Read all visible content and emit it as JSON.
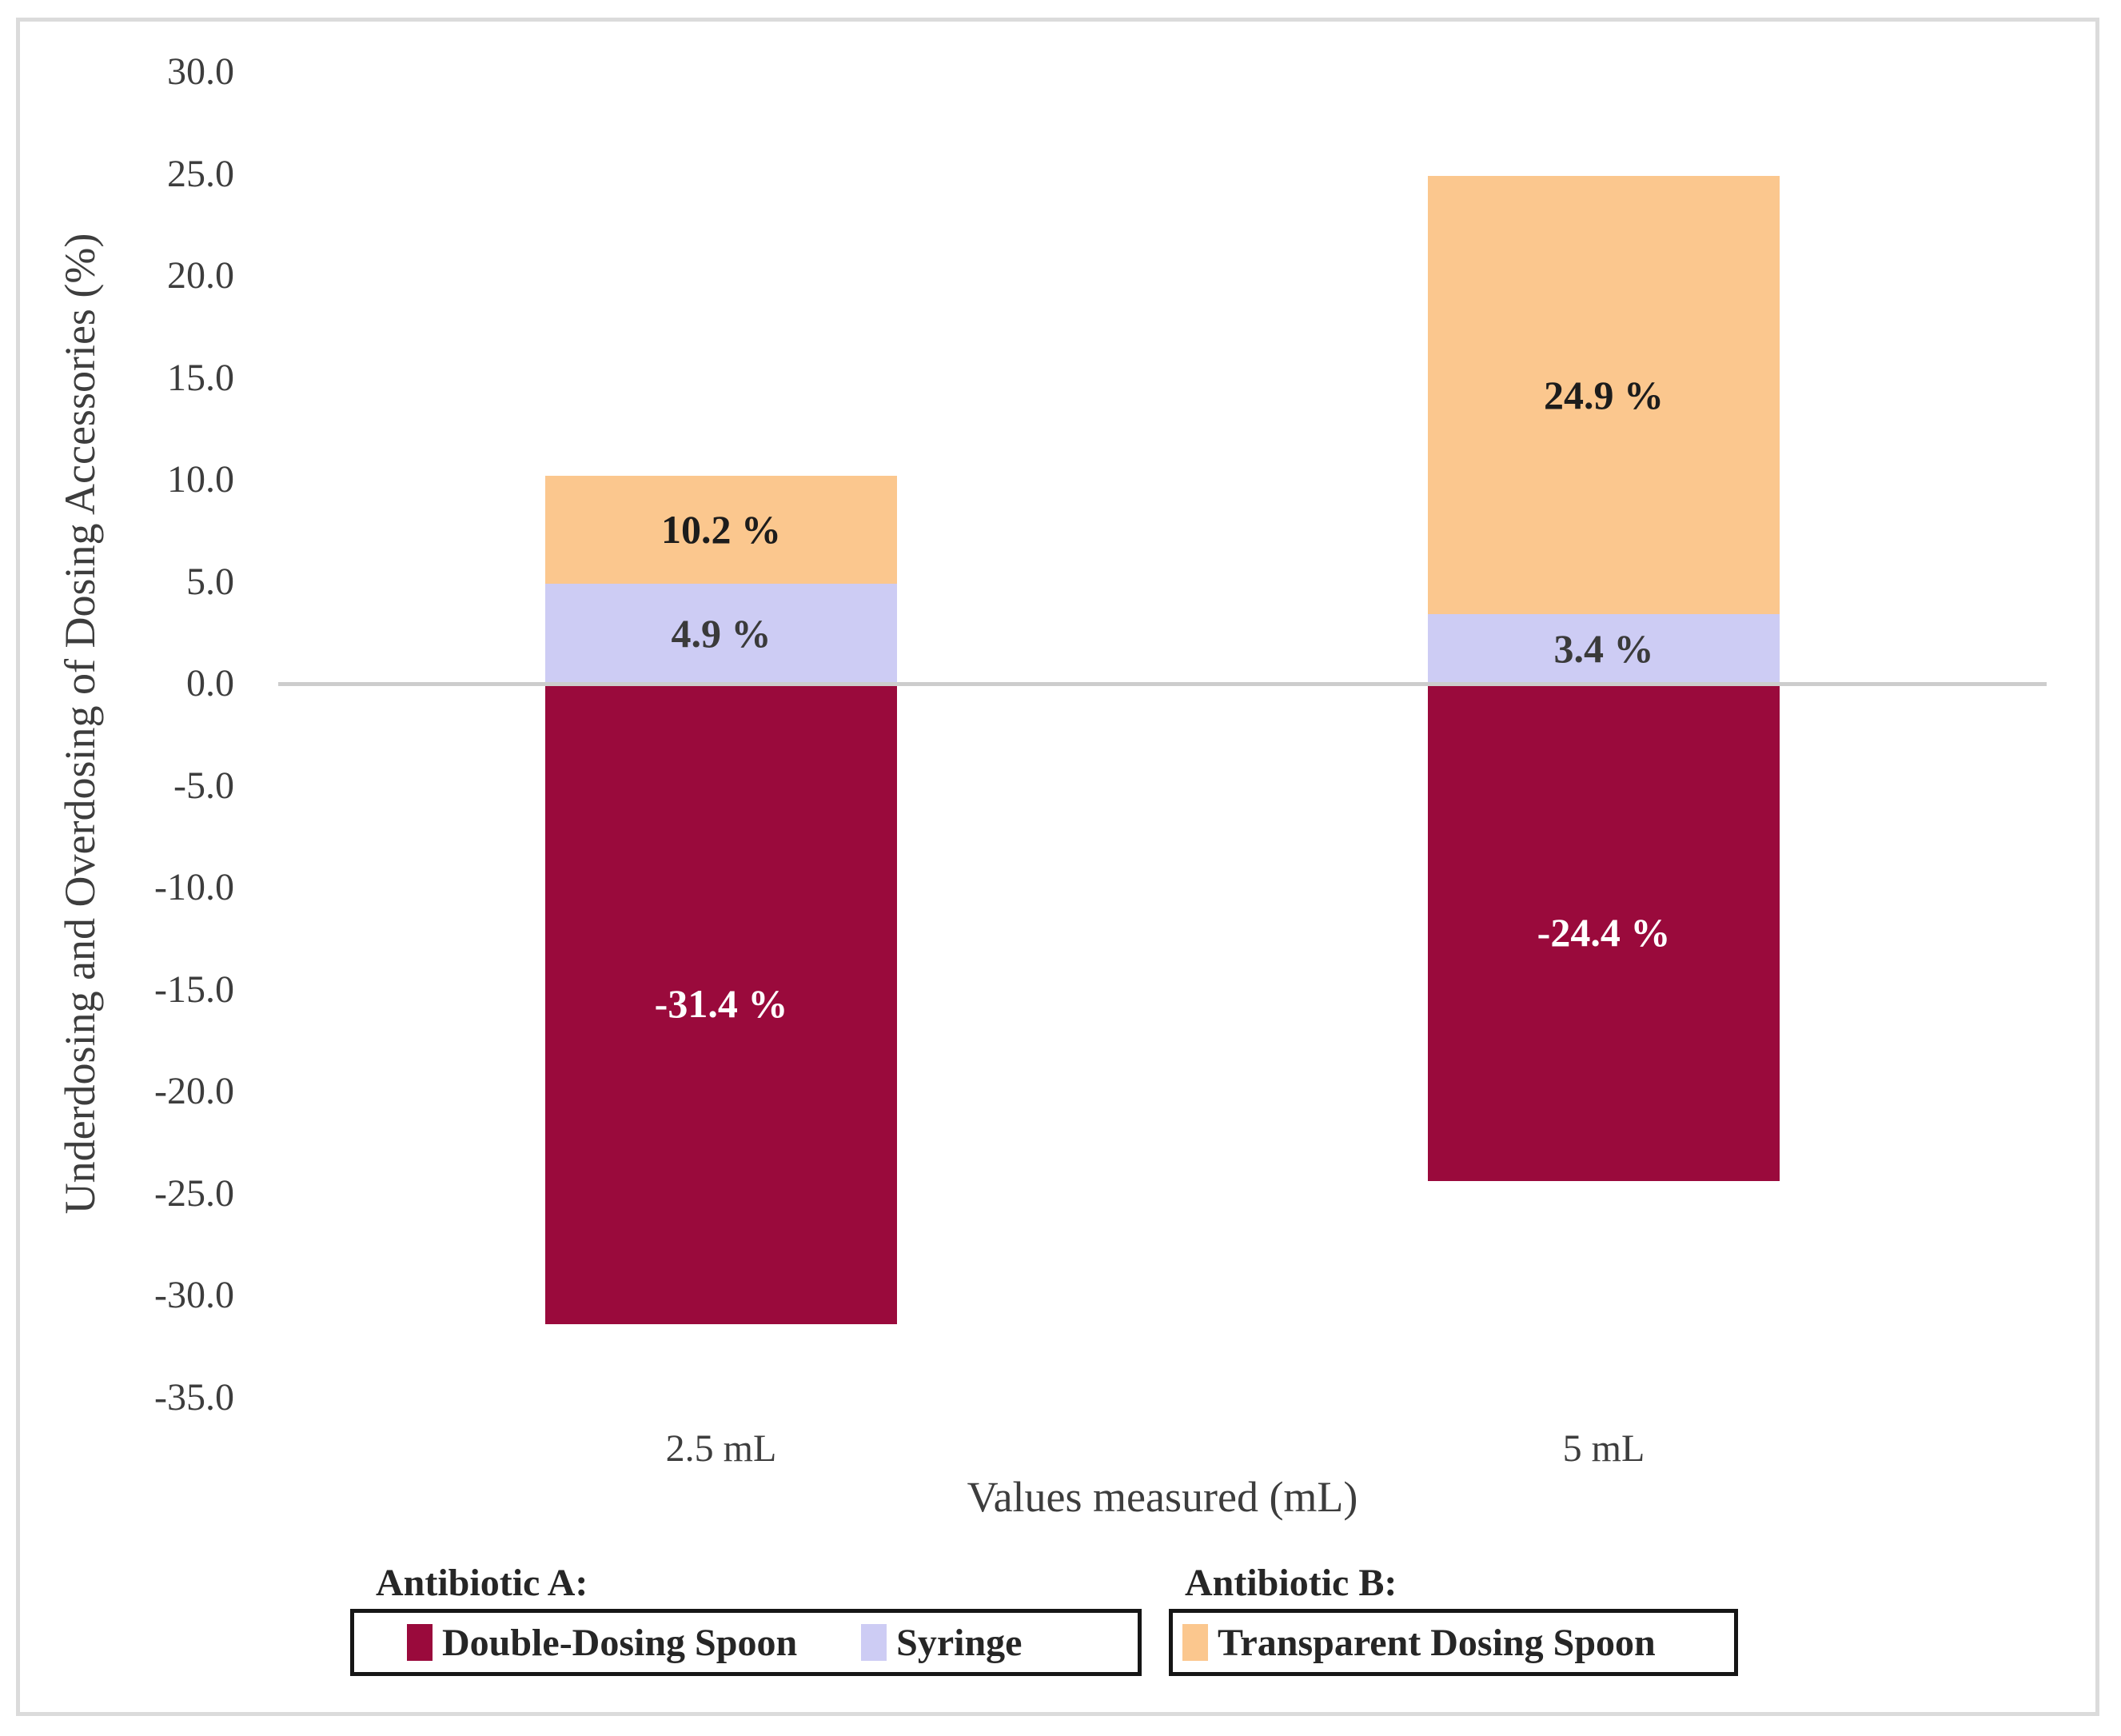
{
  "figure": {
    "background": "#FFFFFF",
    "border_color": "#DBDBDB"
  },
  "chart_data": {
    "type": "bar",
    "subtype": "stacked-column-with-negative-values",
    "title": "",
    "xlabel": "Values measured (mL)",
    "ylabel": "Underdosing and Overdosing of Dosing Accessories (%)",
    "ylim": [
      -35.0,
      30.0
    ],
    "ytick_step": 5.0,
    "grid": false,
    "zero_line_color": "#CDCDCD",
    "legend_position": "bottom",
    "yticks": [
      {
        "value": 30,
        "label": "30.0"
      },
      {
        "value": 25,
        "label": "25.0"
      },
      {
        "value": 20,
        "label": "20.0"
      },
      {
        "value": 15,
        "label": "15.0"
      },
      {
        "value": 10,
        "label": "10.0"
      },
      {
        "value": 5,
        "label": "5.0"
      },
      {
        "value": 0,
        "label": "0.0"
      },
      {
        "value": -5,
        "label": "-5.0"
      },
      {
        "value": -10,
        "label": "-10.0"
      },
      {
        "value": -15,
        "label": "-15.0"
      },
      {
        "value": -20,
        "label": "-20.0"
      },
      {
        "value": -25,
        "label": "-25.0"
      },
      {
        "value": -30,
        "label": "-30.0"
      },
      {
        "value": -35,
        "label": "-35.0"
      }
    ],
    "categories": [
      "2.5 mL",
      "5 mL"
    ],
    "series": [
      {
        "name": "Double-Dosing Spoon",
        "color": "#9A0A3C",
        "values": [
          -31.4,
          -24.4
        ]
      },
      {
        "name": "Syringe",
        "color": "#CDCCF4",
        "values": [
          4.9,
          3.4
        ]
      },
      {
        "name": "Transparent Dosing Spoon",
        "color": "#FBC78E",
        "values": [
          10.2,
          24.9
        ]
      }
    ],
    "bars": [
      {
        "category": "2.5 mL",
        "segments": [
          {
            "series": "Double-Dosing Spoon",
            "from": -31.4,
            "to": 0,
            "label": "-31.4 %",
            "label_color": "#FFFFFF"
          },
          {
            "series": "Syringe",
            "from": 0,
            "to": 4.9,
            "label": "4.9 %",
            "label_color": "#3A3A3A"
          },
          {
            "series": "Transparent Dosing Spoon",
            "from": 4.9,
            "to": 10.2,
            "label": "10.2 %",
            "label_color": "#1C1C1C"
          }
        ]
      },
      {
        "category": "5 mL",
        "segments": [
          {
            "series": "Double-Dosing Spoon",
            "from": -24.4,
            "to": 0,
            "label": "-24.4 %",
            "label_color": "#FFFFFF"
          },
          {
            "series": "Syringe",
            "from": 0,
            "to": 3.4,
            "label": "3.4 %",
            "label_color": "#3A3A3A"
          },
          {
            "series": "Transparent Dosing Spoon",
            "from": 3.4,
            "to": 24.9,
            "label": "24.9 %",
            "label_color": "#1C1C1C"
          }
        ]
      }
    ]
  },
  "legend": {
    "groups": [
      {
        "header": "Antibiotic A:",
        "items": [
          {
            "label": "Double-Dosing Spoon",
            "color": "#9A0A3C"
          },
          {
            "label": "Syringe",
            "color": "#CDCCF4"
          }
        ]
      },
      {
        "header": "Antibiotic B:",
        "items": [
          {
            "label": "Transparent Dosing Spoon",
            "color": "#FBC78E"
          }
        ]
      }
    ]
  }
}
